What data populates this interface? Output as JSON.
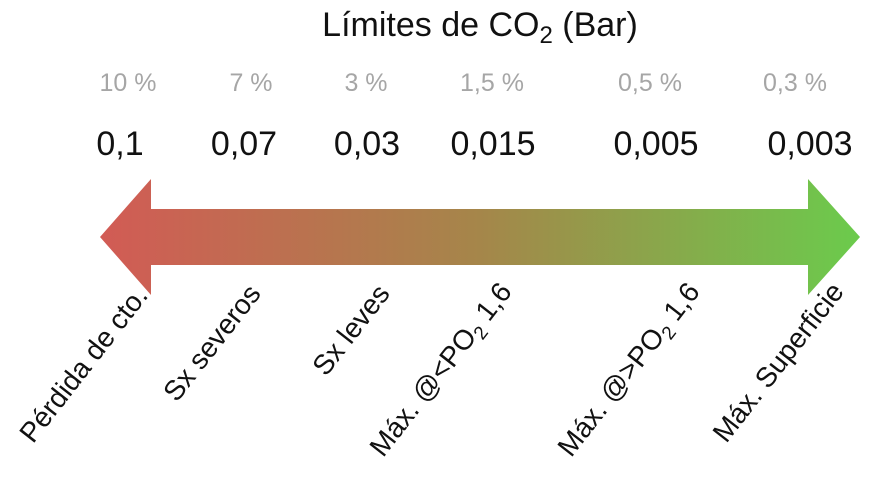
{
  "title": {
    "prefix": "Límites de CO",
    "subscript": "2",
    "suffix": " (Bar)"
  },
  "arrow": {
    "color_left": "#d25b55",
    "color_mid": "#a5864a",
    "color_right": "#6bcb4c"
  },
  "levels": [
    {
      "percent": "10 %",
      "value": "0,1",
      "label": {
        "prefix": "Pérdida de cto.",
        "subscript": "",
        "suffix": ""
      }
    },
    {
      "percent": "7 %",
      "value": "0,07",
      "label": {
        "prefix": "Sx severos",
        "subscript": "",
        "suffix": ""
      }
    },
    {
      "percent": "3 %",
      "value": "0,03",
      "label": {
        "prefix": "Sx leves",
        "subscript": "",
        "suffix": ""
      }
    },
    {
      "percent": "1,5 %",
      "value": "0,015",
      "label": {
        "prefix": "Máx. @<PO",
        "subscript": "2",
        "suffix": " 1,6"
      }
    },
    {
      "percent": "0,5 %",
      "value": "0,005",
      "label": {
        "prefix": "Máx. @>PO",
        "subscript": "2",
        "suffix": " 1,6"
      }
    },
    {
      "percent": "0,3 %",
      "value": "0,003",
      "label": {
        "prefix": "Máx. Superficie",
        "subscript": "",
        "suffix": ""
      }
    }
  ]
}
